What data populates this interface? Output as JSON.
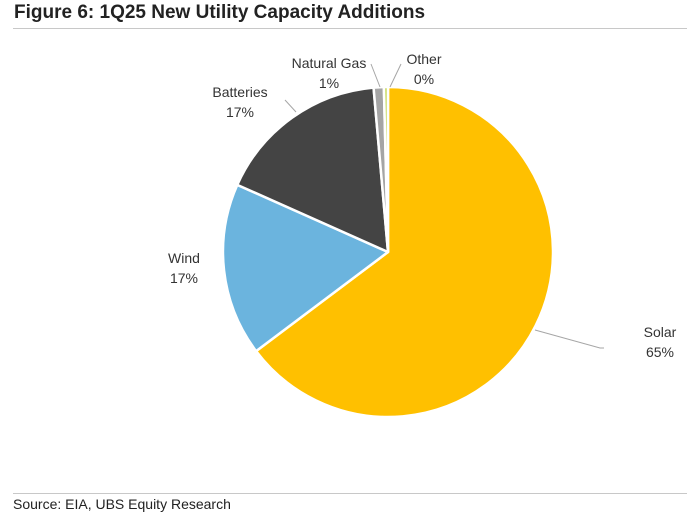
{
  "title": "Figure 6: 1Q25 New Utility Capacity Additions",
  "source": "Source: EIA, UBS Equity Research",
  "colors": {
    "Solar": "#FFC000",
    "Wind": "#6BB4DE",
    "Batteries": "#444444",
    "Natural Gas": "#A5A5A5",
    "Other": "#C9DA62"
  },
  "chart_data": {
    "type": "pie",
    "title": "",
    "slices": [
      {
        "label": "Solar",
        "value": 65,
        "value_label": "65%"
      },
      {
        "label": "Wind",
        "value": 17,
        "value_label": "17%"
      },
      {
        "label": "Batteries",
        "value": 17,
        "value_label": "17%"
      },
      {
        "label": "Natural Gas",
        "value": 1,
        "value_label": "1%"
      },
      {
        "label": "Other",
        "value": 0.4,
        "value_label": "0%"
      }
    ],
    "legend": "none"
  }
}
